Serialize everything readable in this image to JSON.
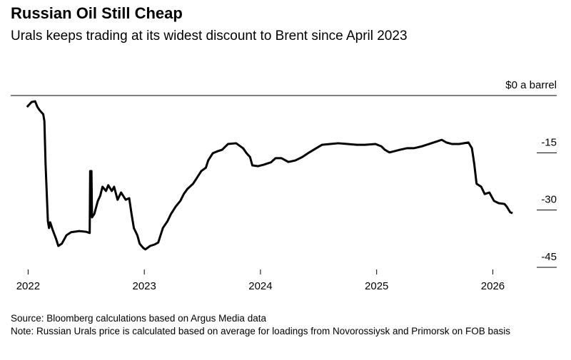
{
  "chart_data": {
    "type": "line",
    "title": "Russian Oil Still Cheap",
    "subtitle": "Urals keeps trading at its widest discount to Brent since April 2023",
    "source": "Source: Bloomberg calculations based on Argus Media data",
    "note": "Note: Russian Urals price is calculated based on average for loadings from Novorossiysk and Primorsk on FOB basis",
    "xlim": [
      2021.85,
      2026.55
    ],
    "xticks": [
      2022,
      2023,
      2024,
      2025,
      2026
    ],
    "ylim": [
      -45,
      0
    ],
    "yticks": [
      {
        "value": 0,
        "label": "$0 a barrel"
      },
      -15,
      -30,
      -45
    ],
    "series": [
      {
        "color": "#000000",
        "x": [
          2021.99,
          2022.03,
          2022.06,
          2022.08,
          2022.1,
          2022.13,
          2022.14,
          2022.15,
          2022.17,
          2022.18,
          2022.19,
          2022.21,
          2022.24,
          2022.26,
          2022.29,
          2022.33,
          2022.37,
          2022.44,
          2022.5,
          2022.53,
          2022.534,
          2022.545,
          2022.55,
          2022.57,
          2022.6,
          2022.62,
          2022.64,
          2022.67,
          2022.69,
          2022.72,
          2022.74,
          2022.77,
          2022.8,
          2022.84,
          2022.87,
          2022.89,
          2022.91,
          2022.94,
          2022.96,
          2022.99,
          2023.01,
          2023.05,
          2023.09,
          2023.12,
          2023.16,
          2023.2,
          2023.23,
          2023.27,
          2023.31,
          2023.34,
          2023.37,
          2023.42,
          2023.45,
          2023.49,
          2023.53,
          2023.55,
          2023.59,
          2023.63,
          2023.67,
          2023.72,
          2023.79,
          2023.85,
          2023.88,
          2023.91,
          2023.93,
          2023.98,
          2024.03,
          2024.09,
          2024.13,
          2024.18,
          2024.24,
          2024.3,
          2024.36,
          2024.42,
          2024.48,
          2024.53,
          2024.6,
          2024.67,
          2024.75,
          2024.83,
          2024.9,
          2024.99,
          2025.04,
          2025.07,
          2025.11,
          2025.15,
          2025.2,
          2025.26,
          2025.32,
          2025.39,
          2025.45,
          2025.52,
          2025.56,
          2025.6,
          2025.65,
          2025.71,
          2025.79,
          2025.82,
          2025.84,
          2025.86,
          2025.9,
          2025.93,
          2025.97,
          2026.01,
          2026.05,
          2026.1,
          2026.12,
          2026.15,
          2026.17
        ],
        "values": [
          -3.0,
          -1.7,
          -1.5,
          -3.0,
          -3.9,
          -4.9,
          -6.7,
          -17.9,
          -32.9,
          -34.7,
          -33.2,
          -35.1,
          -37.5,
          -39.4,
          -38.8,
          -36.6,
          -35.8,
          -35.5,
          -35.7,
          -36.0,
          -19.8,
          -19.8,
          -31.9,
          -31.0,
          -27.6,
          -26.3,
          -23.9,
          -25.0,
          -23.5,
          -25.0,
          -23.9,
          -27.3,
          -25.4,
          -27.3,
          -26.9,
          -31.0,
          -34.7,
          -36.6,
          -38.8,
          -39.9,
          -40.3,
          -39.4,
          -39.0,
          -38.5,
          -34.7,
          -32.9,
          -31.0,
          -29.1,
          -27.6,
          -25.8,
          -24.5,
          -23.1,
          -21.7,
          -19.8,
          -18.9,
          -17.0,
          -15.1,
          -14.6,
          -14.2,
          -12.7,
          -12.5,
          -13.8,
          -15.1,
          -16.1,
          -18.3,
          -18.5,
          -18.1,
          -17.5,
          -16.4,
          -16.4,
          -17.4,
          -17.0,
          -16.1,
          -14.9,
          -13.8,
          -12.9,
          -12.7,
          -12.5,
          -12.7,
          -12.9,
          -12.9,
          -12.7,
          -13.3,
          -14.2,
          -14.9,
          -14.6,
          -14.2,
          -13.8,
          -13.8,
          -13.3,
          -12.7,
          -12.0,
          -11.6,
          -12.3,
          -12.7,
          -12.7,
          -12.3,
          -13.8,
          -17.9,
          -23.1,
          -23.9,
          -25.8,
          -25.4,
          -27.6,
          -28.2,
          -28.4,
          -29.1,
          -30.6,
          -30.8
        ]
      }
    ]
  }
}
